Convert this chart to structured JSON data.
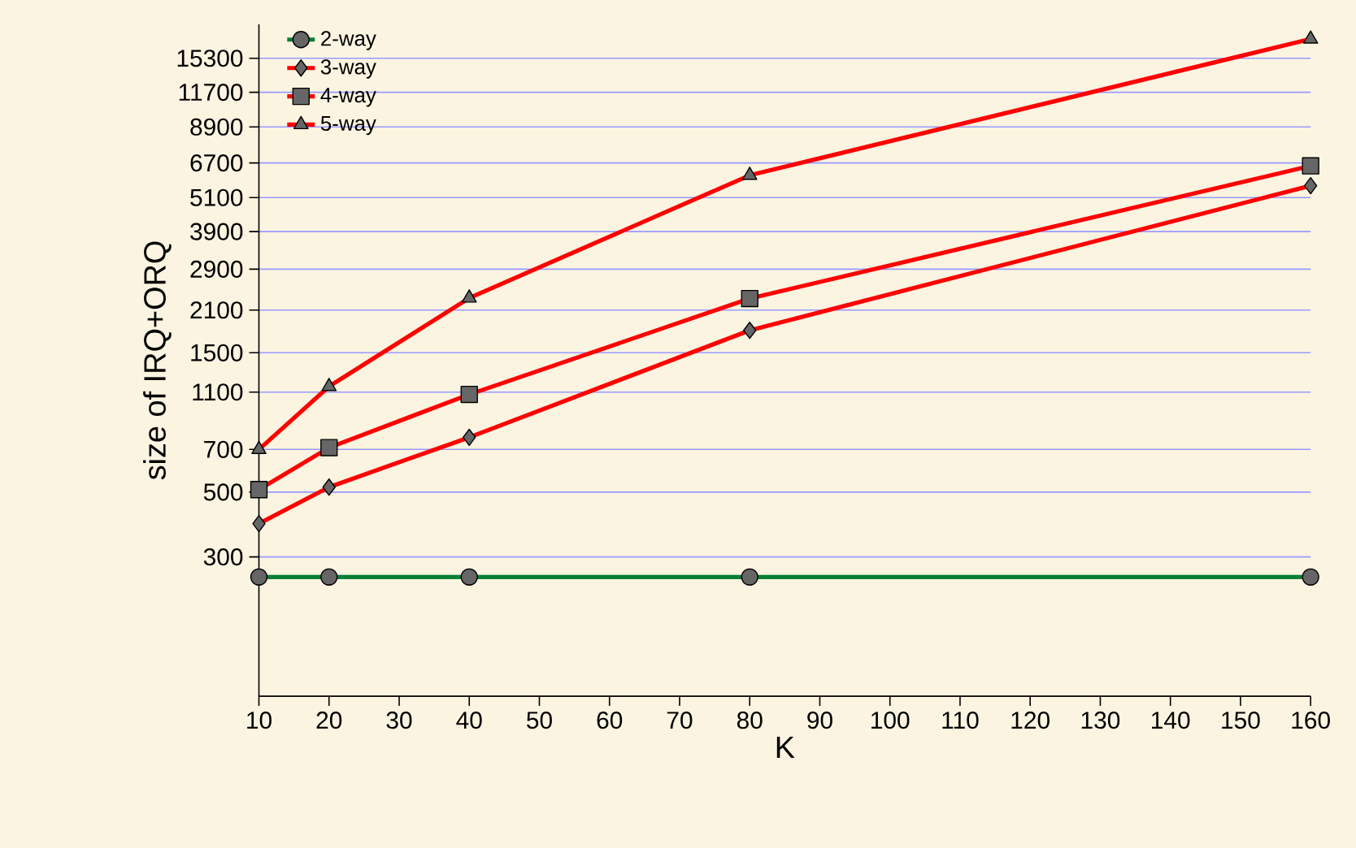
{
  "chart_data": {
    "type": "line",
    "xlabel": "K",
    "ylabel": "size of IRQ+ORQ",
    "x": [
      10,
      20,
      40,
      80,
      160
    ],
    "series": [
      {
        "name": "2-way",
        "color": "#0a7f35",
        "marker": "circle",
        "values": [
          256,
          256,
          256,
          256,
          256
        ]
      },
      {
        "name": "3-way",
        "color": "#ff0000",
        "marker": "diamond",
        "values": [
          390,
          520,
          770,
          1790,
          5600
        ]
      },
      {
        "name": "4-way",
        "color": "#ff0000",
        "marker": "square",
        "values": [
          510,
          710,
          1080,
          2300,
          6550
        ]
      },
      {
        "name": "5-way",
        "color": "#ff0000",
        "marker": "triangle",
        "values": [
          700,
          1150,
          2310,
          6080,
          17800
        ]
      }
    ],
    "log": "y",
    "grid": "y",
    "legend": "top left",
    "xlim": [
      10,
      160
    ],
    "ylim": [
      100,
      20000
    ],
    "xticks": [
      10,
      20,
      30,
      40,
      50,
      60,
      70,
      80,
      90,
      100,
      110,
      120,
      130,
      140,
      150,
      160
    ],
    "yticks": [
      300,
      500,
      700,
      1100,
      1500,
      2100,
      2900,
      3900,
      5100,
      6700,
      8900,
      11700,
      15300
    ]
  }
}
